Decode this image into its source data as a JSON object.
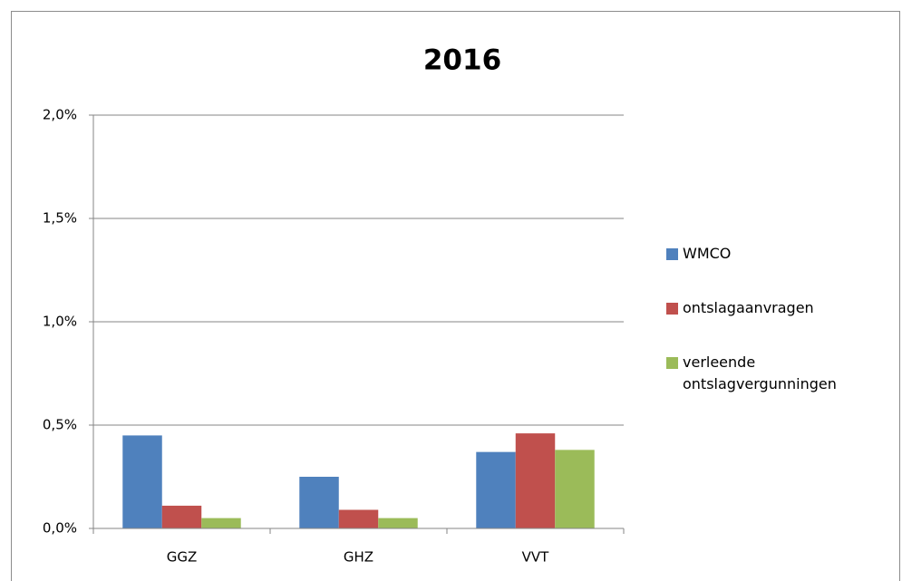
{
  "chart_data": {
    "type": "bar",
    "title": "2016",
    "categories": [
      "GGZ",
      "GHZ",
      "VVT"
    ],
    "series": [
      {
        "name": "WMCO",
        "color": "#4f81bd",
        "values": [
          0.45,
          0.25,
          0.37
        ]
      },
      {
        "name": "ontslagaanvragen",
        "color": "#c0504d",
        "values": [
          0.11,
          0.09,
          0.46
        ]
      },
      {
        "name": "verleende ontslagvergunningen",
        "color": "#9bbb59",
        "values": [
          0.05,
          0.05,
          0.38
        ]
      }
    ],
    "ylim": [
      0,
      2
    ],
    "yticks": [
      {
        "value": 0,
        "label": "0,0%"
      },
      {
        "value": 0.5,
        "label": "0,5%"
      },
      {
        "value": 1,
        "label": "1,0%"
      },
      {
        "value": 1.5,
        "label": "1,5%"
      },
      {
        "value": 2,
        "label": "2,0%"
      }
    ],
    "grid": true,
    "legend": "right"
  }
}
